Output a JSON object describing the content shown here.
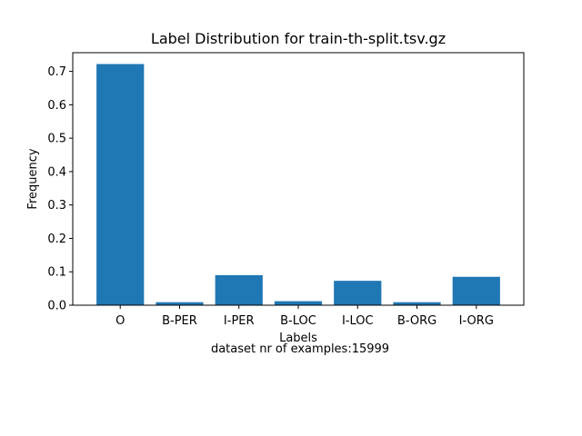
{
  "chart_data": {
    "type": "bar",
    "title": "Label Distribution for train-th-split.tsv.gz",
    "xlabel": "Labels",
    "ylabel": "Frequency",
    "caption": "dataset nr of examples:15999",
    "categories": [
      "O",
      "B-PER",
      "I-PER",
      "B-LOC",
      "I-LOC",
      "B-ORG",
      "I-ORG"
    ],
    "values": [
      0.722,
      0.009,
      0.09,
      0.012,
      0.073,
      0.009,
      0.085
    ],
    "ylim": [
      0,
      0.756
    ],
    "yticks": [
      0.0,
      0.1,
      0.2,
      0.3,
      0.4,
      0.5,
      0.6,
      0.7
    ],
    "ytick_labels": [
      "0.0",
      "0.1",
      "0.2",
      "0.3",
      "0.4",
      "0.5",
      "0.6",
      "0.7"
    ],
    "bar_color": "#1f77b4",
    "grid": false,
    "legend": "none"
  }
}
